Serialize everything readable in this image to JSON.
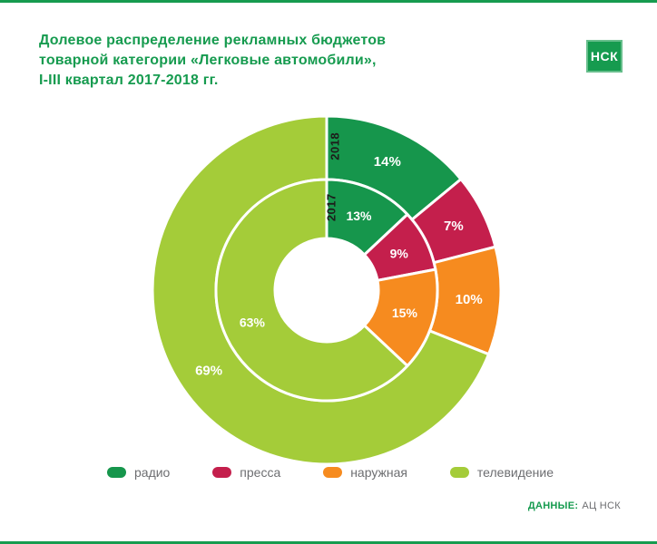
{
  "page": {
    "accent_color": "#169b4f",
    "background": "#ffffff",
    "text_gray": "#6d6e71"
  },
  "header": {
    "title_lines": [
      "Долевое распределение рекламных бюджетов",
      "товарной категории «Легковые автомобили»,",
      "I-III квартал 2017-2018 гг."
    ],
    "logo_text": "НСК"
  },
  "chart_data": {
    "type": "pie",
    "subtype": "double-ring-donut",
    "title": "Долевое распределение рекламных бюджетов товарной категории «Легковые автомобили», I-III квартал 2017-2018 гг.",
    "categories": [
      "радио",
      "пресса",
      "наружная",
      "телевидение"
    ],
    "colors": [
      "#16964c",
      "#c41f4c",
      "#f68b1f",
      "#a4cc39"
    ],
    "rings": [
      {
        "label": "2018",
        "position": "outer",
        "values": [
          14,
          7,
          10,
          69
        ]
      },
      {
        "label": "2017",
        "position": "inner",
        "values": [
          13,
          9,
          15,
          63
        ]
      }
    ],
    "value_suffix": "%",
    "start_angle_deg": 0,
    "direction": "clockwise",
    "legend_position": "bottom"
  },
  "legend": {
    "items": [
      {
        "label": "радио",
        "color": "#16964c"
      },
      {
        "label": "пресса",
        "color": "#c41f4c"
      },
      {
        "label": "наружная",
        "color": "#f68b1f"
      },
      {
        "label": "телевидение",
        "color": "#a4cc39"
      }
    ]
  },
  "footer": {
    "source_label": "ДАННЫЕ:",
    "source_value": "АЦ НСК"
  }
}
